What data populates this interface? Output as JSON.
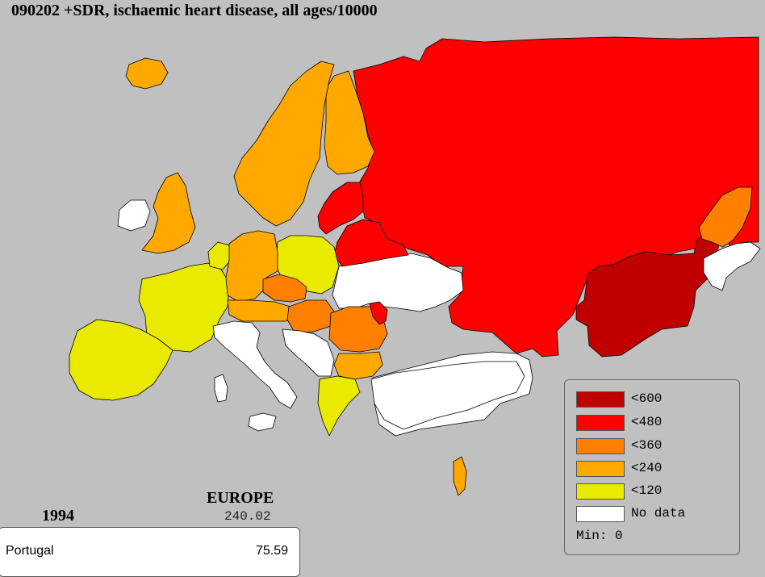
{
  "title": "090202 +SDR, ischaemic heart disease, all ages/10000",
  "region": {
    "name": "EUROPE",
    "value": "240.02"
  },
  "year": "1994",
  "info": {
    "country": "Portugal",
    "value": "75.59"
  },
  "legend": {
    "items": [
      {
        "label": "<600",
        "color": "#c00000"
      },
      {
        "label": "<480",
        "color": "#ff0000"
      },
      {
        "label": "<360",
        "color": "#ff8000"
      },
      {
        "label": "<240",
        "color": "#ffa800"
      },
      {
        "label": "<120",
        "color": "#eaea00"
      },
      {
        "label": "No data",
        "color": "#ffffff"
      }
    ],
    "min_label": "Min: 0"
  }
}
